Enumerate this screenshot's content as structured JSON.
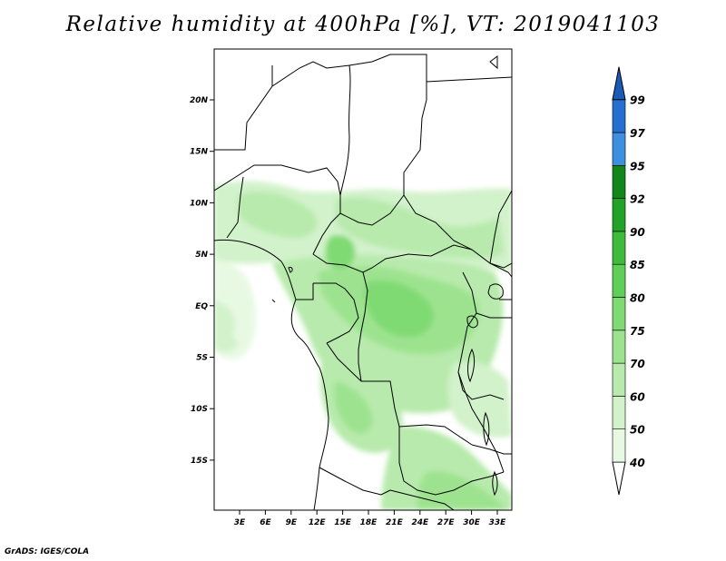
{
  "title": "Relative humidity at 400hPa [%], VT: 2019041103",
  "credit": "GrADS: IGES/COLA",
  "map": {
    "lon_labels": [
      "3E",
      "6E",
      "9E",
      "12E",
      "15E",
      "18E",
      "21E",
      "24E",
      "27E",
      "30E",
      "33E"
    ],
    "lat_labels": [
      "20N",
      "15N",
      "10N",
      "5N",
      "EQ",
      "5S",
      "10S",
      "15S"
    ]
  },
  "colorbar": {
    "levels": [
      "40",
      "50",
      "60",
      "70",
      "75",
      "80",
      "85",
      "90",
      "92",
      "95",
      "97",
      "99"
    ],
    "colors": [
      "#ffffff",
      "#e8f9e3",
      "#d2f2cb",
      "#b7eaac",
      "#9de38f",
      "#80da73",
      "#5fcf57",
      "#3ebb3b",
      "#22a328",
      "#12861b",
      "#3d8fe0",
      "#2570cf",
      "#1a5bb8"
    ]
  }
}
